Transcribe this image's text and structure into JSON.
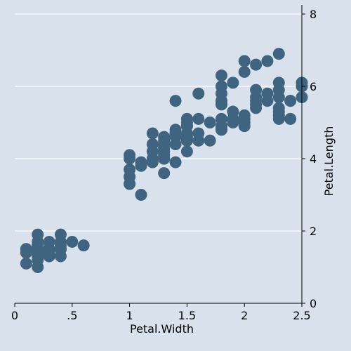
{
  "chart_data": {
    "type": "scatter",
    "xlabel": "Petal.Width",
    "ylabel": "Petal.Length",
    "xlim": [
      0,
      2.5
    ],
    "ylim": [
      0,
      8
    ],
    "x_ticks": [
      0,
      0.5,
      1,
      1.5,
      2,
      2.5
    ],
    "x_tick_labels": [
      "0",
      ".5",
      "1",
      "1.5",
      "2",
      "2.5"
    ],
    "y_ticks": [
      0,
      2,
      4,
      6,
      8
    ],
    "y_tick_labels": [
      "0",
      "2",
      "4",
      "6",
      "8"
    ],
    "y_axis_position": "right",
    "grid": "horizontal",
    "colors": {
      "panel": "#d9e2ec",
      "marker": "#3e6480",
      "grid": "#ffffff",
      "axis": "#000000"
    },
    "points": [
      [
        0.2,
        1.4
      ],
      [
        0.2,
        1.4
      ],
      [
        0.2,
        1.3
      ],
      [
        0.2,
        1.5
      ],
      [
        0.2,
        1.4
      ],
      [
        0.4,
        1.7
      ],
      [
        0.3,
        1.4
      ],
      [
        0.2,
        1.5
      ],
      [
        0.2,
        1.4
      ],
      [
        0.1,
        1.5
      ],
      [
        0.2,
        1.5
      ],
      [
        0.2,
        1.6
      ],
      [
        0.1,
        1.4
      ],
      [
        0.1,
        1.1
      ],
      [
        0.2,
        1.2
      ],
      [
        0.4,
        1.5
      ],
      [
        0.4,
        1.3
      ],
      [
        0.3,
        1.4
      ],
      [
        0.3,
        1.7
      ],
      [
        0.3,
        1.5
      ],
      [
        0.2,
        1.7
      ],
      [
        0.4,
        1.5
      ],
      [
        0.2,
        1.0
      ],
      [
        0.5,
        1.7
      ],
      [
        0.2,
        1.9
      ],
      [
        0.2,
        1.6
      ],
      [
        0.4,
        1.6
      ],
      [
        0.2,
        1.5
      ],
      [
        0.2,
        1.4
      ],
      [
        0.2,
        1.6
      ],
      [
        0.2,
        1.6
      ],
      [
        0.4,
        1.5
      ],
      [
        0.1,
        1.5
      ],
      [
        0.2,
        1.4
      ],
      [
        0.2,
        1.5
      ],
      [
        0.2,
        1.2
      ],
      [
        0.2,
        1.3
      ],
      [
        0.1,
        1.4
      ],
      [
        0.2,
        1.3
      ],
      [
        0.2,
        1.5
      ],
      [
        0.3,
        1.3
      ],
      [
        0.3,
        1.3
      ],
      [
        0.2,
        1.3
      ],
      [
        0.6,
        1.6
      ],
      [
        0.4,
        1.9
      ],
      [
        0.3,
        1.4
      ],
      [
        0.2,
        1.6
      ],
      [
        0.2,
        1.4
      ],
      [
        0.2,
        1.5
      ],
      [
        0.2,
        1.4
      ],
      [
        1.4,
        4.7
      ],
      [
        1.5,
        4.5
      ],
      [
        1.5,
        4.9
      ],
      [
        1.3,
        4.0
      ],
      [
        1.5,
        4.6
      ],
      [
        1.3,
        4.5
      ],
      [
        1.6,
        4.7
      ],
      [
        1.0,
        3.3
      ],
      [
        1.3,
        4.6
      ],
      [
        1.4,
        3.9
      ],
      [
        1.0,
        3.5
      ],
      [
        1.5,
        4.2
      ],
      [
        1.0,
        4.0
      ],
      [
        1.4,
        4.7
      ],
      [
        1.3,
        3.6
      ],
      [
        1.4,
        4.4
      ],
      [
        1.5,
        4.5
      ],
      [
        1.0,
        4.1
      ],
      [
        1.5,
        4.5
      ],
      [
        1.1,
        3.9
      ],
      [
        1.8,
        4.8
      ],
      [
        1.3,
        4.0
      ],
      [
        1.5,
        4.9
      ],
      [
        1.2,
        4.7
      ],
      [
        1.3,
        4.3
      ],
      [
        1.4,
        4.4
      ],
      [
        1.4,
        4.8
      ],
      [
        1.7,
        5.0
      ],
      [
        1.5,
        4.5
      ],
      [
        1.0,
        3.5
      ],
      [
        1.1,
        3.8
      ],
      [
        1.0,
        3.7
      ],
      [
        1.2,
        3.9
      ],
      [
        1.6,
        5.1
      ],
      [
        1.5,
        4.5
      ],
      [
        1.6,
        4.5
      ],
      [
        1.5,
        4.7
      ],
      [
        1.3,
        4.4
      ],
      [
        1.3,
        4.1
      ],
      [
        1.3,
        4.0
      ],
      [
        1.2,
        4.4
      ],
      [
        1.4,
        4.6
      ],
      [
        1.2,
        4.0
      ],
      [
        1.0,
        3.3
      ],
      [
        1.3,
        4.2
      ],
      [
        1.2,
        4.2
      ],
      [
        1.3,
        4.2
      ],
      [
        1.3,
        4.3
      ],
      [
        1.1,
        3.0
      ],
      [
        1.3,
        4.1
      ],
      [
        2.5,
        6.0
      ],
      [
        1.9,
        5.1
      ],
      [
        2.1,
        5.9
      ],
      [
        1.8,
        5.6
      ],
      [
        2.2,
        5.8
      ],
      [
        2.1,
        6.6
      ],
      [
        1.7,
        4.5
      ],
      [
        1.8,
        6.3
      ],
      [
        1.8,
        5.8
      ],
      [
        2.5,
        6.1
      ],
      [
        2.0,
        5.1
      ],
      [
        1.9,
        5.3
      ],
      [
        2.1,
        5.5
      ],
      [
        2.0,
        5.0
      ],
      [
        2.4,
        5.1
      ],
      [
        2.3,
        5.3
      ],
      [
        1.8,
        5.5
      ],
      [
        2.2,
        6.7
      ],
      [
        2.3,
        6.9
      ],
      [
        1.5,
        5.0
      ],
      [
        2.3,
        5.7
      ],
      [
        2.0,
        4.9
      ],
      [
        2.0,
        6.7
      ],
      [
        1.8,
        4.9
      ],
      [
        2.1,
        5.7
      ],
      [
        1.8,
        6.0
      ],
      [
        1.8,
        4.8
      ],
      [
        1.8,
        4.9
      ],
      [
        2.1,
        5.6
      ],
      [
        1.6,
        5.8
      ],
      [
        1.9,
        6.1
      ],
      [
        2.0,
        6.4
      ],
      [
        2.2,
        5.6
      ],
      [
        1.5,
        5.1
      ],
      [
        1.4,
        5.6
      ],
      [
        2.3,
        6.1
      ],
      [
        2.4,
        5.6
      ],
      [
        1.8,
        5.5
      ],
      [
        1.8,
        4.8
      ],
      [
        2.1,
        5.4
      ],
      [
        2.4,
        5.6
      ],
      [
        2.3,
        5.1
      ],
      [
        1.9,
        5.1
      ],
      [
        2.3,
        5.9
      ],
      [
        2.5,
        5.7
      ],
      [
        2.3,
        5.2
      ],
      [
        1.9,
        5.0
      ],
      [
        2.0,
        5.2
      ],
      [
        2.3,
        5.4
      ],
      [
        1.8,
        5.1
      ]
    ]
  }
}
